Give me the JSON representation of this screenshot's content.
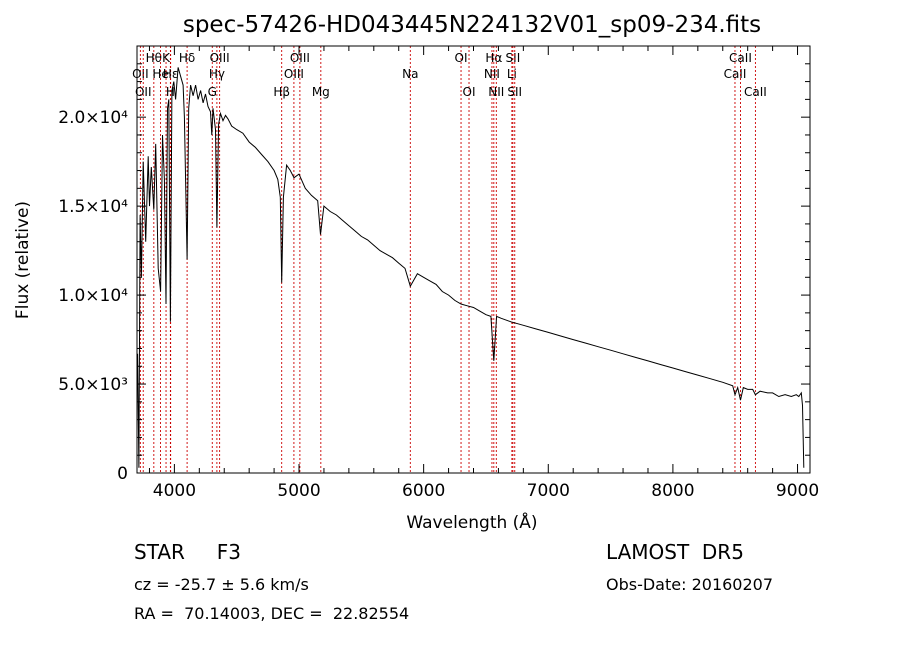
{
  "chart_data": {
    "type": "line",
    "title": "spec-57426-HD043445N224132V01_sp09-234.fits",
    "xlabel": "Wavelength (Å)",
    "ylabel": "Flux (relative)",
    "xlim": [
      3700,
      9100
    ],
    "ylim": [
      0,
      24000
    ],
    "x_ticks": [
      4000,
      5000,
      6000,
      7000,
      8000,
      9000
    ],
    "y_ticks": [
      {
        "value": 0,
        "label": "0"
      },
      {
        "value": 5000,
        "label": "5.0×10³"
      },
      {
        "value": 10000,
        "label": "1.0×10⁴"
      },
      {
        "value": 15000,
        "label": "1.5×10⁴"
      },
      {
        "value": 20000,
        "label": "2.0×10⁴"
      }
    ],
    "grid": false,
    "series": [
      {
        "color": "#000000",
        "x": [
          3705,
          3715,
          3725,
          3735,
          3750,
          3770,
          3790,
          3800,
          3815,
          3835,
          3850,
          3870,
          3889,
          3905,
          3920,
          3933,
          3945,
          3955,
          3968,
          3980,
          3995,
          4010,
          4030,
          4050,
          4070,
          4080,
          4102,
          4115,
          4130,
          4150,
          4170,
          4190,
          4210,
          4230,
          4250,
          4270,
          4290,
          4300,
          4310,
          4330,
          4341,
          4355,
          4370,
          4390,
          4410,
          4430,
          4460,
          4500,
          4550,
          4600,
          4650,
          4700,
          4750,
          4800,
          4830,
          4850,
          4861,
          4875,
          4900,
          4930,
          4960,
          5000,
          5050,
          5100,
          5150,
          5172,
          5200,
          5250,
          5300,
          5350,
          5400,
          5450,
          5500,
          5550,
          5600,
          5650,
          5700,
          5750,
          5800,
          5850,
          5893,
          5950,
          6000,
          6050,
          6100,
          6150,
          6200,
          6250,
          6300,
          6350,
          6400,
          6450,
          6500,
          6540,
          6563,
          6585,
          6620,
          6700,
          6800,
          6900,
          7000,
          7100,
          7200,
          7300,
          7400,
          7500,
          7600,
          7700,
          7800,
          7900,
          8000,
          8100,
          8200,
          8300,
          8400,
          8480,
          8498,
          8520,
          8542,
          8565,
          8600,
          8640,
          8662,
          8700,
          8760,
          8800,
          8850,
          8900,
          8950,
          8990,
          9010,
          9030,
          9040,
          9050
        ],
        "y": [
          6700,
          300,
          14500,
          11000,
          17500,
          13000,
          17800,
          15000,
          17200,
          14800,
          18500,
          11500,
          10200,
          19000,
          16500,
          9500,
          20500,
          21000,
          8500,
          21500,
          22000,
          21000,
          22800,
          22300,
          21800,
          20000,
          12000,
          20500,
          21800,
          21200,
          21800,
          21000,
          21500,
          20800,
          21300,
          20600,
          20300,
          19000,
          20500,
          19300,
          13800,
          19600,
          20200,
          19800,
          20100,
          19900,
          19500,
          19300,
          19100,
          18600,
          18300,
          17900,
          17500,
          17000,
          16500,
          15500,
          10700,
          15500,
          17300,
          17000,
          16600,
          16800,
          16000,
          15600,
          15300,
          13400,
          15000,
          14700,
          14500,
          14200,
          13900,
          13600,
          13300,
          13100,
          12800,
          12500,
          12300,
          12100,
          11800,
          11500,
          10500,
          11200,
          11000,
          10800,
          10600,
          10200,
          10000,
          9700,
          9500,
          9400,
          9300,
          9100,
          8900,
          8800,
          6300,
          8800,
          8700,
          8500,
          8300,
          8100,
          7900,
          7700,
          7500,
          7300,
          7100,
          6900,
          6700,
          6500,
          6300,
          6100,
          5900,
          5700,
          5500,
          5300,
          5100,
          4900,
          4400,
          4800,
          4100,
          4800,
          4700,
          4700,
          4400,
          4600,
          4500,
          4500,
          4300,
          4400,
          4300,
          4400,
          4300,
          4500,
          3800,
          300
        ]
      }
    ],
    "line_markers": [
      {
        "wavelength": 3727,
        "label": "OII",
        "row": 2
      },
      {
        "wavelength": 3750,
        "label": "OII",
        "row": 3
      },
      {
        "wavelength": 3835,
        "label": "Hθ",
        "row": 1
      },
      {
        "wavelength": 3889,
        "label": "He",
        "row": 2
      },
      {
        "wavelength": 3933,
        "label": "K",
        "row": 1
      },
      {
        "wavelength": 3968,
        "label": "H",
        "row": 3
      },
      {
        "wavelength": 3970,
        "label": "Hε",
        "row": 2
      },
      {
        "wavelength": 4102,
        "label": "Hδ",
        "row": 1
      },
      {
        "wavelength": 4304,
        "label": "G",
        "row": 3
      },
      {
        "wavelength": 4341,
        "label": "Hγ",
        "row": 2
      },
      {
        "wavelength": 4363,
        "label": "OIII",
        "row": 1
      },
      {
        "wavelength": 4861,
        "label": "Hβ",
        "row": 3
      },
      {
        "wavelength": 4959,
        "label": "OIII",
        "row": 2
      },
      {
        "wavelength": 5007,
        "label": "OIII",
        "row": 1
      },
      {
        "wavelength": 5175,
        "label": "Mg",
        "row": 3
      },
      {
        "wavelength": 5893,
        "label": "Na",
        "row": 2
      },
      {
        "wavelength": 6300,
        "label": "OI",
        "row": 1
      },
      {
        "wavelength": 6364,
        "label": "OI",
        "row": 3
      },
      {
        "wavelength": 6548,
        "label": "NII",
        "row": 2
      },
      {
        "wavelength": 6563,
        "label": "Hα",
        "row": 1
      },
      {
        "wavelength": 6583,
        "label": "NII",
        "row": 3
      },
      {
        "wavelength": 6708,
        "label": "Li",
        "row": 2
      },
      {
        "wavelength": 6716,
        "label": "SII",
        "row": 1
      },
      {
        "wavelength": 6731,
        "label": "SII",
        "row": 3
      },
      {
        "wavelength": 8498,
        "label": "CaII",
        "row": 2
      },
      {
        "wavelength": 8542,
        "label": "CaII",
        "row": 1
      },
      {
        "wavelength": 8662,
        "label": "CaII",
        "row": 3
      }
    ]
  },
  "info": {
    "class_text": "STAR     F3",
    "survey": "LAMOST  DR5",
    "redshift": "cz = -25.7 ± 5.6 km/s",
    "obs_date": "Obs-Date: 20160207",
    "coords": "RA =  70.14003, DEC =  22.82554"
  }
}
